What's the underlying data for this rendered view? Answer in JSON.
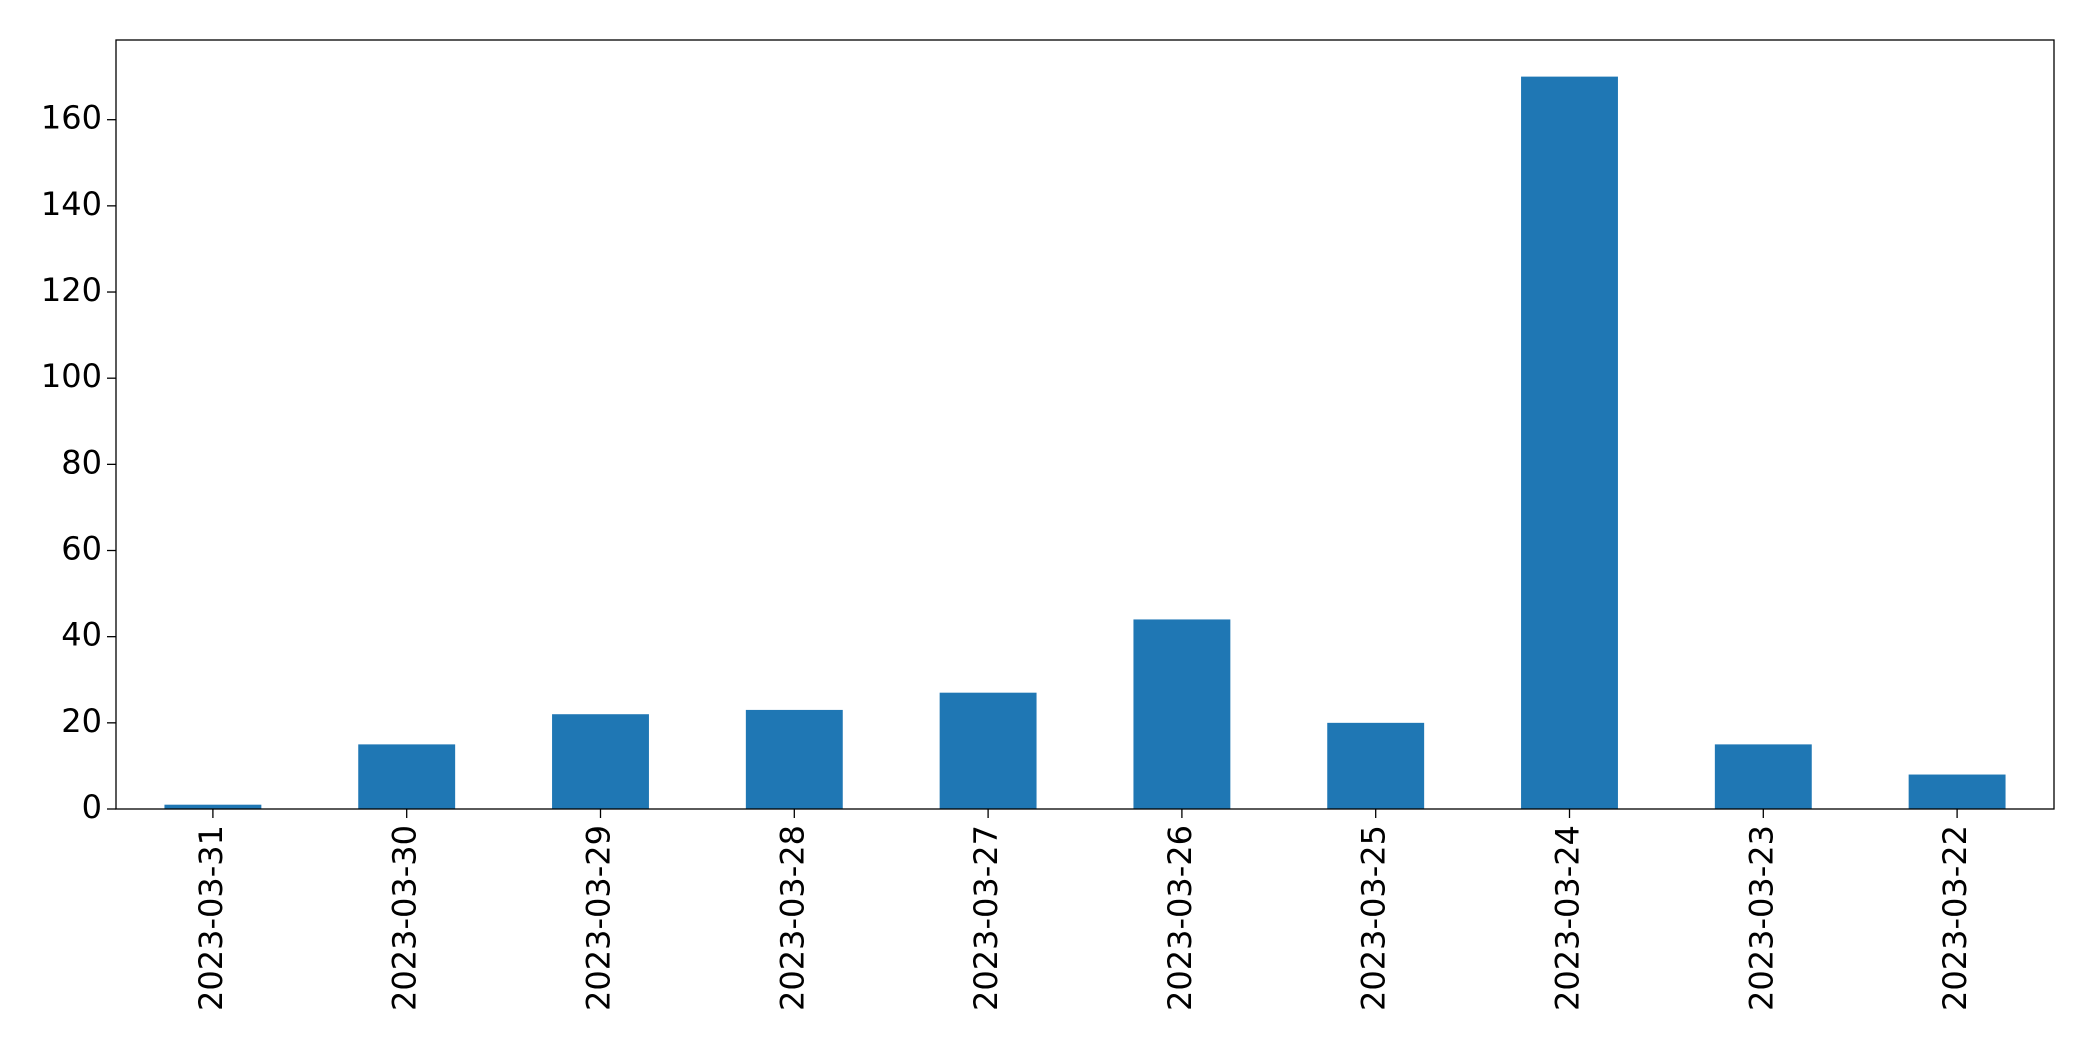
{
  "chart_data": {
    "type": "bar",
    "categories": [
      "2023-03-31",
      "2023-03-30",
      "2023-03-29",
      "2023-03-28",
      "2023-03-27",
      "2023-03-26",
      "2023-03-25",
      "2023-03-24",
      "2023-03-23",
      "2023-03-22"
    ],
    "values": [
      1,
      15,
      22,
      23,
      27,
      44,
      20,
      170,
      15,
      8
    ],
    "color": "#1f77b4",
    "ylim": [
      0,
      178.5
    ],
    "yticks": [
      0,
      20,
      40,
      60,
      80,
      100,
      120,
      140,
      160
    ],
    "grid": false
  }
}
